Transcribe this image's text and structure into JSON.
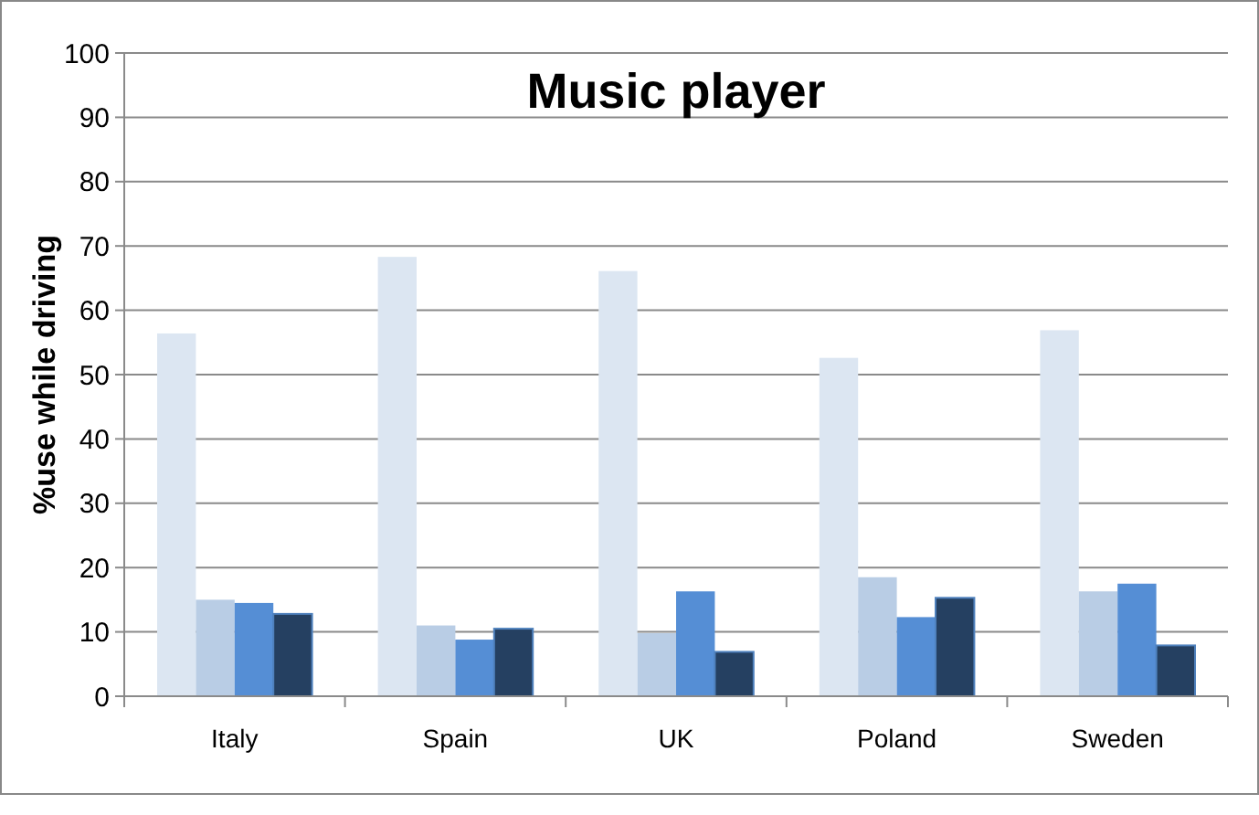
{
  "chart_data": {
    "type": "bar",
    "title": "Music player",
    "ylabel": "%use while driving",
    "categories": [
      "Italy",
      "Spain",
      "UK",
      "Poland",
      "Sweden"
    ],
    "series": [
      {
        "color": "#dce6f2",
        "values": [
          56.4,
          68.3,
          66.1,
          52.6,
          56.9
        ]
      },
      {
        "color": "#b9cde5",
        "values": [
          15,
          11,
          9.8,
          18.5,
          16.3
        ]
      },
      {
        "color": "#558ed5",
        "values": [
          14.5,
          8.8,
          16.3,
          12.3,
          17.5
        ]
      },
      {
        "color": "#254061",
        "values": [
          12.8,
          10.5,
          6.9,
          15.3,
          7.9
        ]
      }
    ],
    "ylim": [
      0,
      100
    ],
    "yticks": [
      0,
      10,
      20,
      30,
      40,
      50,
      60,
      70,
      80,
      90,
      100
    ],
    "grid": "y"
  }
}
